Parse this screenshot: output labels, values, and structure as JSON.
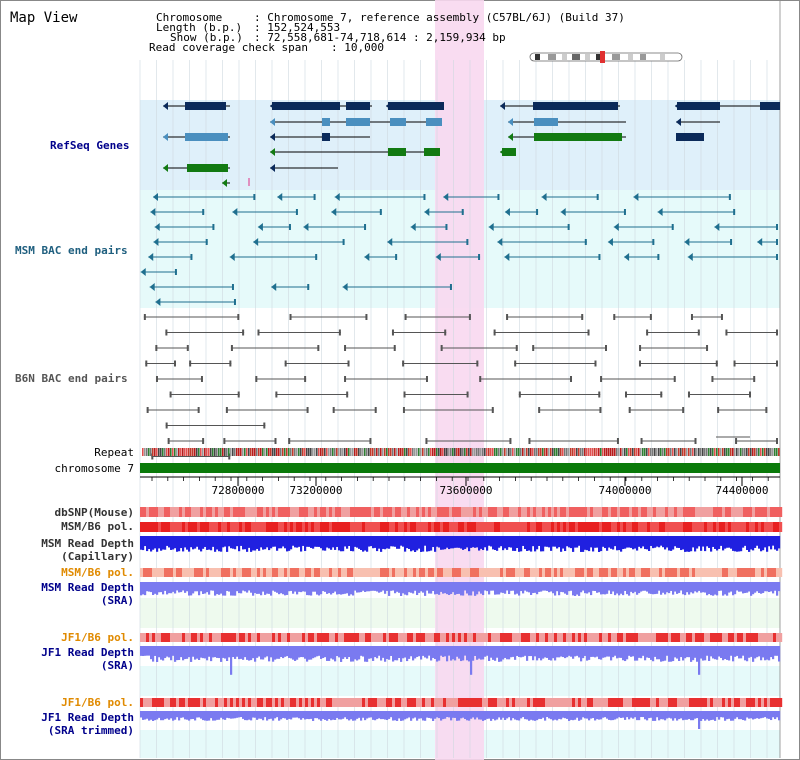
{
  "title": "Map View",
  "info": {
    "chromosome_key": "Chromosome",
    "chromosome_val": ": Chromosome 7, reference assembly (C57BL/6J) (Build 37)",
    "length_key": "Length (b.p.)",
    "length_val": ": 152,524,553",
    "show_key": "Show (b.p.)",
    "show_val": ": 72,558,681-74,718,614 : 2,159,934 bp",
    "coverage_key": "Read coverage check span",
    "coverage_val": ": 10,000"
  },
  "tracks": {
    "refseq": "RefSeq Genes",
    "msm_bac": "MSM BAC end pairs",
    "b6n_bac": "B6N BAC end pairs",
    "repeat": "Repeat",
    "chromosome": "chromosome 7",
    "dbsnp": "dbSNP(Mouse)",
    "msm_b6_pol_1": "MSM/B6 pol.",
    "msm_depth_cap_1": "MSM Read Depth",
    "msm_depth_cap_2": "(Capillary)",
    "msm_b6_pol_2": "MSM/B6 pol.",
    "msm_depth_sra_1": "MSM Read Depth",
    "msm_depth_sra_2": "(SRA)",
    "jf1_b6_pol_1": "JF1/B6 pol.",
    "jf1_depth_sra_1": "JF1 Read Depth",
    "jf1_depth_sra_2": "(SRA)",
    "jf1_b6_pol_2": "JF1/B6 pol.",
    "jf1_depth_trim_1": "JF1 Read Depth",
    "jf1_depth_trim_2": "(SRA trimmed)"
  },
  "axis": {
    "ticks": [
      "72800000",
      "73200000",
      "73600000",
      "74000000",
      "74400000"
    ]
  },
  "colors": {
    "refseq_bg": "#dff0fa",
    "msm_bg": "#e6fafa",
    "highlight": "#f8d8f0",
    "gene_blue": "#4a8fbf",
    "gene_navy": "#0b2a5a",
    "gene_green": "#127a12",
    "chrom_green": "#0a7a0a",
    "msm_line": "#1f6f8f",
    "b6n_line": "#555555",
    "label_dark_blue": "#00008b",
    "label_teal": "#1f5f7f",
    "label_gray": "#333333",
    "label_orange": "#e08a00",
    "depth_blue": "#2020e0",
    "depth_lavender": "#7a7af0"
  }
}
